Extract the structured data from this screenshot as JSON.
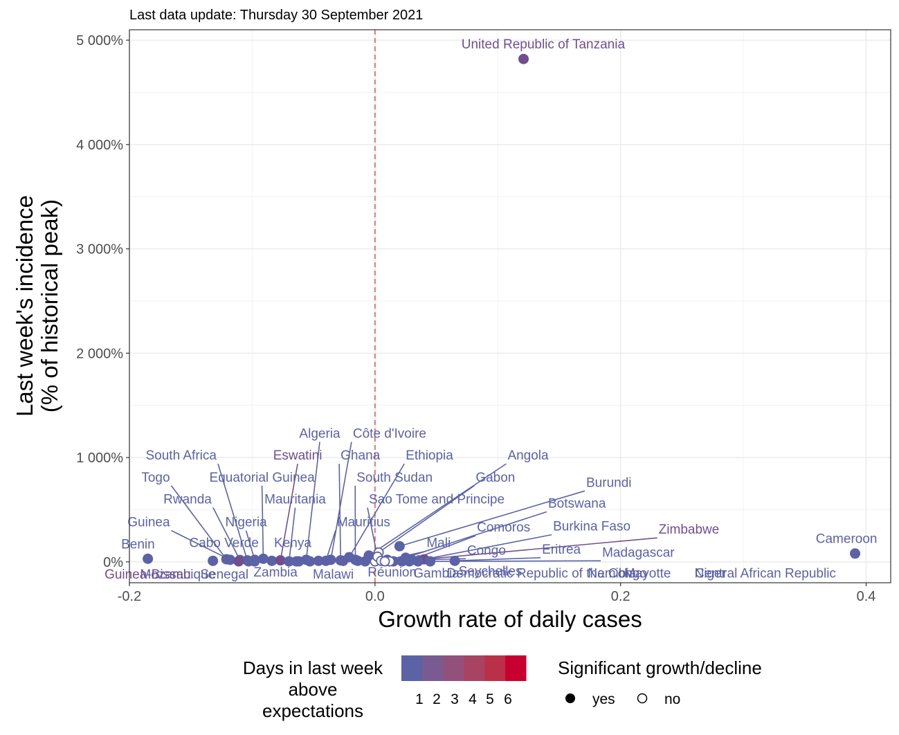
{
  "subtitle": "Last data update: Thursday 30 September 2021",
  "chart_data": {
    "type": "scatter",
    "xlabel": "Growth rate of daily cases",
    "ylabel_line1": "Last week's incidence",
    "ylabel_line2": "(% of historical peak)",
    "xlim": [
      -0.2,
      0.42
    ],
    "ylim": [
      -200,
      5100
    ],
    "x_ticks": [
      -0.2,
      0.0,
      0.2,
      0.4
    ],
    "x_tick_labels": [
      "-0.2",
      "0.0",
      "0.2",
      "0.4"
    ],
    "y_ticks": [
      0,
      1000,
      2000,
      3000,
      4000,
      5000
    ],
    "y_tick_labels": [
      "0%",
      "1 000%",
      "2 000%",
      "3 000%",
      "4 000%",
      "5 000%"
    ],
    "grid": true,
    "reference_line_x": 0,
    "reference_line_color": "#e8736c",
    "colors": {
      "low": "#5b62a6",
      "mid": "#7d5c90",
      "high": "#c80030"
    },
    "points": [
      {
        "name": "United Republic of Tanzania",
        "x": 0.121,
        "y": 4820,
        "days": 2,
        "sig": true,
        "lx": 0.137,
        "ly": 4920,
        "anchor": "middle",
        "leader": false
      },
      {
        "name": "Cameroon",
        "x": 0.391,
        "y": 80,
        "days": 1,
        "sig": true,
        "lx": 0.384,
        "ly": 180,
        "anchor": "middle",
        "leader": false
      },
      {
        "name": "Benin",
        "x": -0.185,
        "y": 30,
        "days": 1,
        "sig": true,
        "lx": -0.193,
        "ly": 130,
        "anchor": "middle",
        "leader": false
      },
      {
        "name": "Togo",
        "x": -0.121,
        "y": 25,
        "days": 1,
        "sig": true,
        "lx": -0.167,
        "ly": 770,
        "anchor": "end",
        "leader": true
      },
      {
        "name": "Guinea",
        "x": -0.118,
        "y": 20,
        "days": 1,
        "sig": true,
        "lx": -0.167,
        "ly": 340,
        "anchor": "end",
        "leader": true
      },
      {
        "name": "Rwanda",
        "x": -0.11,
        "y": 18,
        "days": 1,
        "sig": true,
        "lx": -0.133,
        "ly": 560,
        "anchor": "end",
        "leader": true
      },
      {
        "name": "South Africa",
        "x": -0.104,
        "y": 15,
        "days": 1,
        "sig": true,
        "lx": -0.129,
        "ly": 980,
        "anchor": "end",
        "leader": true
      },
      {
        "name": "Cabo Verde",
        "x": -0.132,
        "y": 10,
        "days": 1,
        "sig": true,
        "lx": -0.123,
        "ly": 140,
        "anchor": "middle",
        "leader": false
      },
      {
        "name": "Nigeria",
        "x": -0.098,
        "y": 20,
        "days": 1,
        "sig": true,
        "lx": -0.105,
        "ly": 340,
        "anchor": "middle",
        "leader": true
      },
      {
        "name": "Equatorial Guinea",
        "x": -0.091,
        "y": 30,
        "days": 1,
        "sig": true,
        "lx": -0.092,
        "ly": 770,
        "anchor": "middle",
        "leader": true
      },
      {
        "name": "Kenya",
        "x": -0.084,
        "y": 10,
        "days": 1,
        "sig": true,
        "lx": -0.067,
        "ly": 140,
        "anchor": "middle",
        "leader": false
      },
      {
        "name": "Eswatini",
        "x": -0.077,
        "y": 15,
        "days": 2,
        "sig": true,
        "lx": -0.063,
        "ly": 980,
        "anchor": "middle",
        "leader": true
      },
      {
        "name": "Mauritania",
        "x": -0.07,
        "y": 5,
        "days": 1,
        "sig": true,
        "lx": -0.065,
        "ly": 560,
        "anchor": "middle",
        "leader": true
      },
      {
        "name": "Algeria",
        "x": -0.056,
        "y": 20,
        "days": 1,
        "sig": true,
        "lx": -0.045,
        "ly": 1190,
        "anchor": "middle",
        "leader": true
      },
      {
        "name": "Zambia",
        "x": -0.064,
        "y": 5,
        "days": 1,
        "sig": true,
        "lx": -0.081,
        "ly": -140,
        "anchor": "middle",
        "leader": false
      },
      {
        "name": "Senegal",
        "x": -0.098,
        "y": 5,
        "days": 1,
        "sig": true,
        "lx": -0.103,
        "ly": -160,
        "anchor": "end",
        "leader": false
      },
      {
        "name": "Mozambique",
        "x": -0.103,
        "y": 5,
        "days": 1,
        "sig": true,
        "lx": -0.13,
        "ly": -160,
        "anchor": "end",
        "leader": false
      },
      {
        "name": "Guinea-Bissau",
        "x": -0.111,
        "y": 5,
        "days": 2,
        "sig": true,
        "lx": -0.15,
        "ly": -160,
        "anchor": "end",
        "leader": false
      },
      {
        "name": "Malawi",
        "x": -0.053,
        "y": 5,
        "days": 1,
        "sig": true,
        "lx": -0.034,
        "ly": -160,
        "anchor": "middle",
        "leader": false
      },
      {
        "name": "Côte d'Ivoire",
        "x": -0.036,
        "y": 20,
        "days": 1,
        "sig": true,
        "lx": -0.018,
        "ly": 1190,
        "anchor": "start",
        "leader": true
      },
      {
        "name": "Ghana",
        "x": -0.028,
        "y": 15,
        "days": 1,
        "sig": true,
        "lx": -0.028,
        "ly": 980,
        "anchor": "start",
        "leader": true
      },
      {
        "name": "Ethiopia",
        "x": -0.021,
        "y": 45,
        "days": 1,
        "sig": true,
        "lx": 0.025,
        "ly": 980,
        "anchor": "start",
        "leader": true
      },
      {
        "name": "South Sudan",
        "x": -0.016,
        "y": 20,
        "days": 1,
        "sig": true,
        "lx": -0.015,
        "ly": 770,
        "anchor": "start",
        "leader": true
      },
      {
        "name": "Mauritius",
        "x": -0.04,
        "y": 10,
        "days": 1,
        "sig": true,
        "lx": -0.031,
        "ly": 340,
        "anchor": "start",
        "leader": true
      },
      {
        "name": "Réunion",
        "x": -0.008,
        "y": 5,
        "days": 1,
        "sig": true,
        "lx": 0.014,
        "ly": -140,
        "anchor": "middle",
        "leader": false
      },
      {
        "name": "Gambia",
        "x": 0.0,
        "y": 5,
        "days": 1,
        "sig": false,
        "lx": 0.05,
        "ly": -150,
        "anchor": "middle",
        "leader": false
      },
      {
        "name": "Angola",
        "x": -0.005,
        "y": 60,
        "days": 1,
        "sig": true,
        "lx": 0.108,
        "ly": 980,
        "anchor": "start",
        "leader": true
      },
      {
        "name": "Gabon",
        "x": 0.003,
        "y": 90,
        "days": 1,
        "sig": false,
        "lx": 0.082,
        "ly": 770,
        "anchor": "start",
        "leader": true
      },
      {
        "name": "Sao Tome and Principe",
        "x": 0.002,
        "y": 50,
        "days": 1,
        "sig": false,
        "lx": -0.005,
        "ly": 560,
        "anchor": "start",
        "leader": true
      },
      {
        "name": "Burundi",
        "x": 0.02,
        "y": 150,
        "days": 1,
        "sig": true,
        "lx": 0.172,
        "ly": 720,
        "anchor": "start",
        "leader": true
      },
      {
        "name": "Botswana",
        "x": 0.025,
        "y": 40,
        "days": 1,
        "sig": true,
        "lx": 0.141,
        "ly": 520,
        "anchor": "start",
        "leader": true
      },
      {
        "name": "Comoros",
        "x": 0.03,
        "y": 20,
        "days": 1,
        "sig": true,
        "lx": 0.083,
        "ly": 290,
        "anchor": "start",
        "leader": true
      },
      {
        "name": "Burkina Faso",
        "x": 0.036,
        "y": 15,
        "days": 1,
        "sig": true,
        "lx": 0.145,
        "ly": 300,
        "anchor": "start",
        "leader": true
      },
      {
        "name": "Zimbabwe",
        "x": 0.04,
        "y": 25,
        "days": 2,
        "sig": true,
        "lx": 0.231,
        "ly": 270,
        "anchor": "start",
        "leader": true
      },
      {
        "name": "Mali",
        "x": 0.01,
        "y": 20,
        "days": 1,
        "sig": true,
        "lx": 0.042,
        "ly": 140,
        "anchor": "start",
        "leader": true
      },
      {
        "name": "Congo",
        "x": 0.005,
        "y": 10,
        "days": 1,
        "sig": false,
        "lx": 0.075,
        "ly": 70,
        "anchor": "start",
        "leader": true
      },
      {
        "name": "Eritrea",
        "x": 0.065,
        "y": 10,
        "days": 1,
        "sig": true,
        "lx": 0.136,
        "ly": 80,
        "anchor": "start",
        "leader": true
      },
      {
        "name": "Madagascar",
        "x": 0.045,
        "y": 5,
        "days": 1,
        "sig": true,
        "lx": 0.185,
        "ly": 50,
        "anchor": "start",
        "leader": true
      },
      {
        "name": "Seychelles",
        "x": 0.015,
        "y": 5,
        "days": 1,
        "sig": true,
        "lx": 0.094,
        "ly": -130,
        "anchor": "middle",
        "leader": false
      },
      {
        "name": "Democratic Republic of the Congo",
        "x": 0.012,
        "y": 5,
        "days": 1,
        "sig": false,
        "lx": 0.14,
        "ly": -150,
        "anchor": "middle",
        "leader": false
      },
      {
        "name": "Namibia",
        "x": 0.035,
        "y": 5,
        "days": 1,
        "sig": true,
        "lx": 0.193,
        "ly": -150,
        "anchor": "middle",
        "leader": false
      },
      {
        "name": "Mayotte",
        "x": 0.008,
        "y": 5,
        "days": 1,
        "sig": false,
        "lx": 0.222,
        "ly": -150,
        "anchor": "middle",
        "leader": false
      },
      {
        "name": "Niger",
        "x": 0.028,
        "y": 5,
        "days": 1,
        "sig": true,
        "lx": 0.273,
        "ly": -150,
        "anchor": "middle",
        "leader": false
      },
      {
        "name": "Central African Republic",
        "x": 0.022,
        "y": 5,
        "days": 1,
        "sig": true,
        "lx": 0.318,
        "ly": -150,
        "anchor": "middle",
        "leader": false
      },
      {
        "name": "",
        "x": -0.062,
        "y": 5,
        "days": 1,
        "sig": true,
        "lx": null,
        "ly": null,
        "anchor": "middle",
        "leader": false
      },
      {
        "name": "",
        "x": -0.046,
        "y": 10,
        "days": 1,
        "sig": true,
        "lx": null,
        "ly": null,
        "anchor": "middle",
        "leader": false
      },
      {
        "name": "",
        "x": -0.026,
        "y": 10,
        "days": 1,
        "sig": true,
        "lx": null,
        "ly": null,
        "anchor": "middle",
        "leader": false
      },
      {
        "name": "",
        "x": -0.014,
        "y": 10,
        "days": 1,
        "sig": true,
        "lx": null,
        "ly": null,
        "anchor": "middle",
        "leader": false
      }
    ]
  },
  "legend": {
    "color_title_lines": [
      "Days in last week",
      "above",
      "expectations"
    ],
    "color_labels": [
      "1",
      "2",
      "3",
      "4",
      "5",
      "6"
    ],
    "color_swatches": [
      "#5b62a6",
      "#795b92",
      "#93507b",
      "#a84364",
      "#ba3048",
      "#c80030"
    ],
    "shape_title": "Significant growth/decline",
    "shape_labels": [
      "yes",
      "no"
    ]
  }
}
